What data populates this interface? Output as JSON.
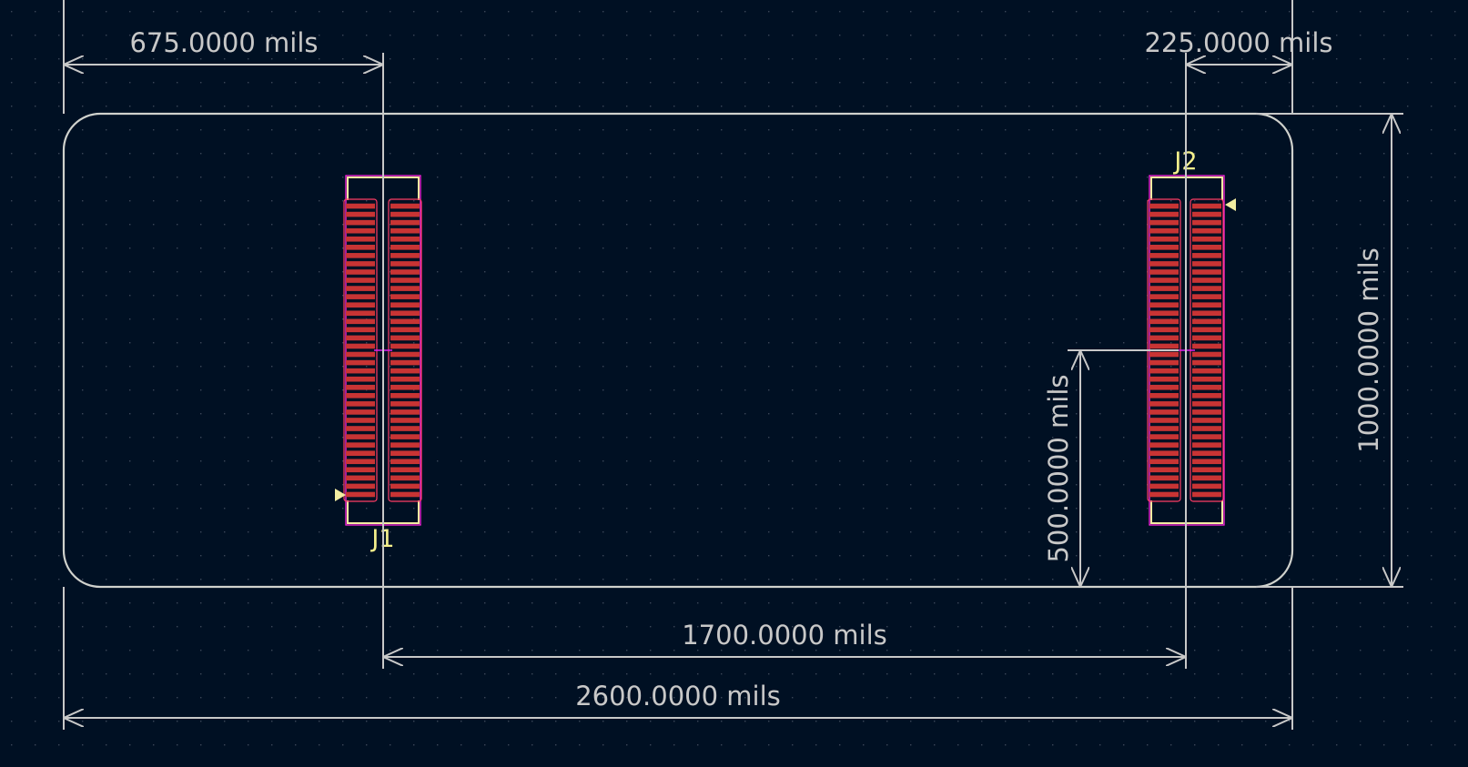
{
  "units": "mils",
  "colors": {
    "background": "#001023",
    "grid_dot": "#3a4658",
    "edge_cuts": "#d0d2cd",
    "dimension": "#c8c8c8",
    "pad": "#c83434",
    "pad_outline": "#ff3c66",
    "courtyard": "#ff26e2",
    "silkscreen": "#f2eda1",
    "anchor": "#e01ef0"
  },
  "dimensions": [
    {
      "id": "dim-675",
      "label": "675.0000 mils"
    },
    {
      "id": "dim-225",
      "label": "225.0000 mils"
    },
    {
      "id": "dim-1000",
      "label": "1000.0000 mils"
    },
    {
      "id": "dim-500",
      "label": "500.0000 mils"
    },
    {
      "id": "dim-1700",
      "label": "1700.0000 mils"
    },
    {
      "id": "dim-2600",
      "label": "2600.0000 mils"
    }
  ],
  "footprints": [
    {
      "ref": "J1",
      "pads_per_row": 36,
      "rows": 2
    },
    {
      "ref": "J2",
      "pads_per_row": 36,
      "rows": 2
    }
  ]
}
